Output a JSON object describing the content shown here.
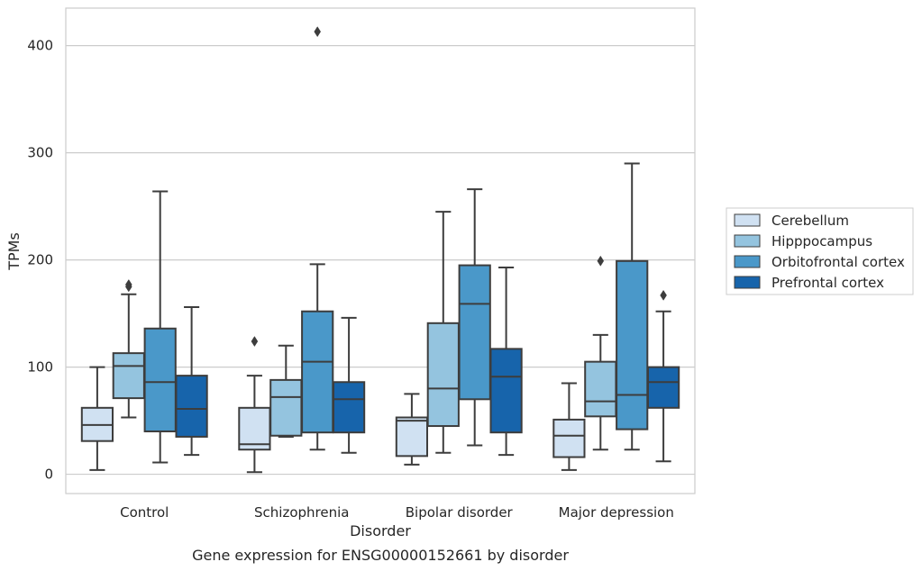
{
  "chart_data": {
    "type": "boxplot",
    "xlabel": "Disorder",
    "ylabel": "TPMs",
    "caption": "Gene expression for ENSG00000152661 by disorder",
    "ylim": [
      -18,
      435
    ],
    "yticks": [
      0,
      100,
      200,
      300,
      400
    ],
    "grid": "horizontal",
    "legend_position": "right",
    "categories": [
      "Control",
      "Schizophrenia",
      "Bipolar disorder",
      "Major depression"
    ],
    "series": [
      {
        "name": "Cerebellum",
        "color": "#d0e1f2",
        "boxes": [
          {
            "whislo": 4,
            "q1": 31,
            "med": 46,
            "q3": 62,
            "whishi": 100,
            "fliers": []
          },
          {
            "whislo": 2,
            "q1": 23,
            "med": 28,
            "q3": 62,
            "whishi": 92,
            "fliers": [
              124
            ]
          },
          {
            "whislo": 9,
            "q1": 17,
            "med": 50,
            "q3": 53,
            "whishi": 75,
            "fliers": []
          },
          {
            "whislo": 4,
            "q1": 16,
            "med": 36,
            "q3": 51,
            "whishi": 85,
            "fliers": []
          }
        ]
      },
      {
        "name": "Hipppocampus",
        "color": "#94c4df",
        "boxes": [
          {
            "whislo": 53,
            "q1": 71,
            "med": 101,
            "q3": 113,
            "whishi": 168,
            "fliers": [
              175,
              177
            ]
          },
          {
            "whislo": 35,
            "q1": 36,
            "med": 72,
            "q3": 88,
            "whishi": 120,
            "fliers": []
          },
          {
            "whislo": 20,
            "q1": 45,
            "med": 80,
            "q3": 141,
            "whishi": 245,
            "fliers": []
          },
          {
            "whislo": 23,
            "q1": 54,
            "med": 68,
            "q3": 105,
            "whishi": 130,
            "fliers": [
              199
            ]
          }
        ]
      },
      {
        "name": "Orbitofrontal cortex",
        "color": "#4a98c9",
        "boxes": [
          {
            "whislo": 11,
            "q1": 40,
            "med": 86,
            "q3": 136,
            "whishi": 264,
            "fliers": []
          },
          {
            "whislo": 23,
            "q1": 39,
            "med": 105,
            "q3": 152,
            "whishi": 196,
            "fliers": [
              413
            ]
          },
          {
            "whislo": 27,
            "q1": 70,
            "med": 159,
            "q3": 195,
            "whishi": 266,
            "fliers": []
          },
          {
            "whislo": 23,
            "q1": 42,
            "med": 74,
            "q3": 199,
            "whishi": 290,
            "fliers": []
          }
        ]
      },
      {
        "name": "Prefrontal cortex",
        "color": "#1764ab",
        "boxes": [
          {
            "whislo": 18,
            "q1": 35,
            "med": 61,
            "q3": 92,
            "whishi": 156,
            "fliers": []
          },
          {
            "whislo": 20,
            "q1": 39,
            "med": 70,
            "q3": 86,
            "whishi": 146,
            "fliers": []
          },
          {
            "whislo": 18,
            "q1": 39,
            "med": 91,
            "q3": 117,
            "whishi": 193,
            "fliers": []
          },
          {
            "whislo": 12,
            "q1": 62,
            "med": 86,
            "q3": 100,
            "whishi": 152,
            "fliers": [
              167
            ]
          }
        ]
      }
    ]
  }
}
